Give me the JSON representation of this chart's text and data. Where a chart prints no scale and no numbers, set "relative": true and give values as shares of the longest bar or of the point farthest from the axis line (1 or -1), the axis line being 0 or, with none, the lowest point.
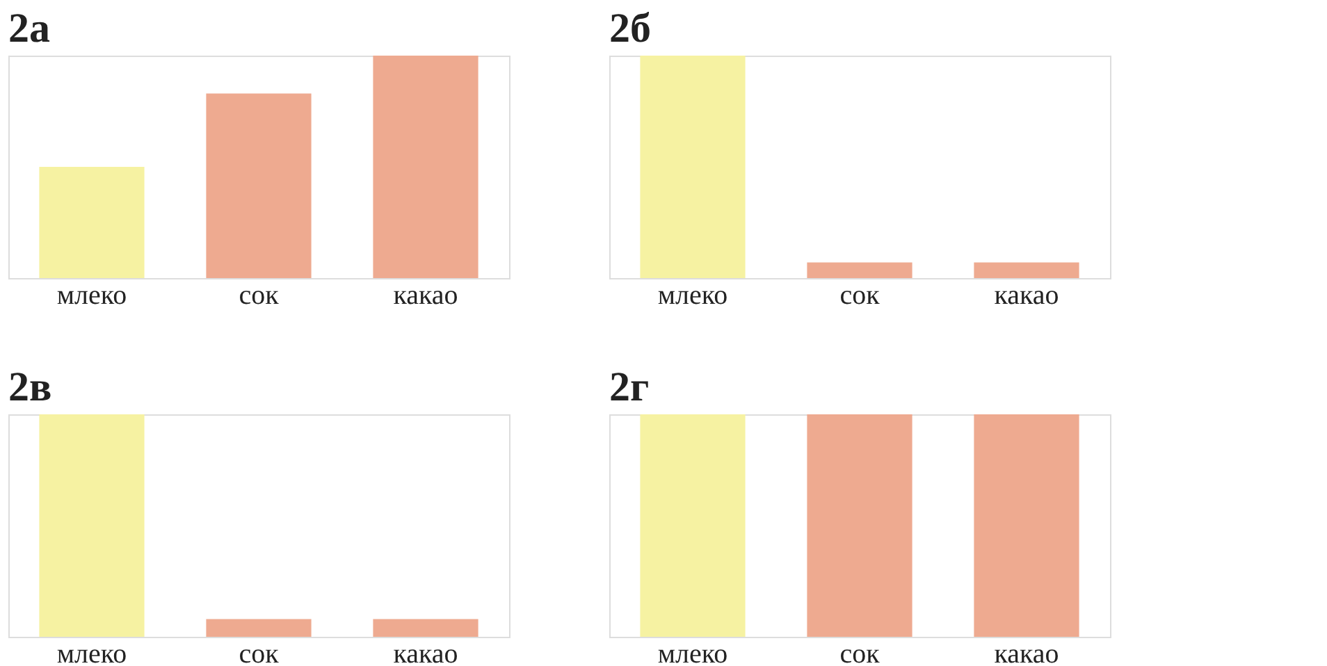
{
  "chart_data": [
    {
      "type": "bar",
      "title": "2а",
      "categories": [
        "млеко",
        "сок",
        "какао"
      ],
      "colors": [
        "#f6f2a2",
        "#eeaa90",
        "#eeaa90"
      ],
      "values": [
        0.5,
        0.83,
        1
      ],
      "relative": true,
      "tick_labels": "x"
    },
    {
      "type": "bar",
      "title": "2б",
      "categories": [
        "млеко",
        "сок",
        "какао"
      ],
      "colors": [
        "#f6f2a2",
        "#eeaa90",
        "#eeaa90"
      ],
      "values": [
        1,
        0.07,
        0.07
      ],
      "relative": true,
      "tick_labels": "x"
    },
    {
      "type": "bar",
      "title": "2в",
      "categories": [
        "млеко",
        "сок",
        "какао"
      ],
      "colors": [
        "#f6f2a2",
        "#eeaa90",
        "#eeaa90"
      ],
      "values": [
        1,
        0.08,
        0.08
      ],
      "relative": true,
      "tick_labels": "x"
    },
    {
      "type": "bar",
      "title": "2г",
      "categories": [
        "млеко",
        "сок",
        "какао"
      ],
      "colors": [
        "#f6f2a2",
        "#eeaa90",
        "#eeaa90"
      ],
      "values": [
        1,
        1,
        1
      ],
      "relative": true,
      "tick_labels": "x"
    }
  ]
}
